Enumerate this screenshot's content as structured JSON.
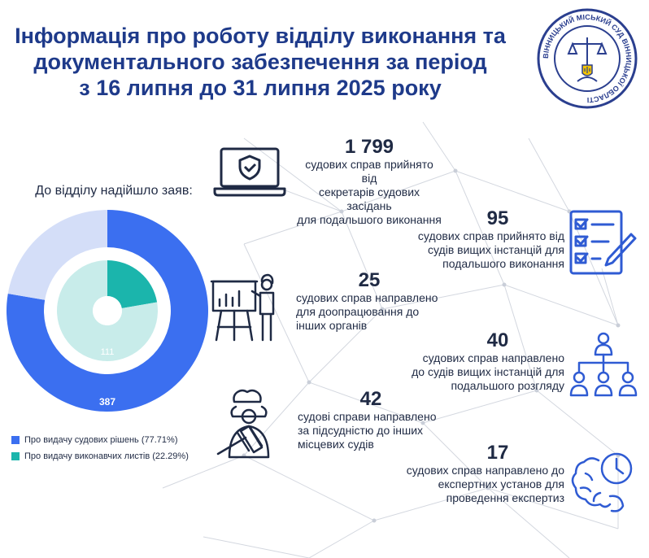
{
  "title_lines": [
    "Інформація про роботу відділу виконання та",
    "документального забезпечення за період",
    "з 16 липня до 31 липня 2025 року"
  ],
  "emblem": {
    "ring_text": "ВІННИЦЬКИЙ МІСЬКИЙ СУД ВІННИЦЬКОЇ ОБЛАСТІ",
    "colors": {
      "primary": "#2b3f8f",
      "accent": "#f2c300"
    }
  },
  "donut": {
    "title": "До відділу надійшло заяв:",
    "outer_label": "387",
    "inner_label": "111"
  },
  "chart_data": {
    "type": "pie",
    "title": "До відділу надійшло заяв:",
    "rings": [
      {
        "slices": [
          {
            "name": "Про видачу судових рішень",
            "value": 387,
            "percent": 77.71,
            "color": "#3b6ff0"
          },
          {
            "name": "rest",
            "value": 111,
            "percent": 22.29,
            "color": "#d4def8"
          }
        ]
      },
      {
        "slices": [
          {
            "name": "Про видачу виконавчих листів",
            "value": 111,
            "percent": 22.29,
            "color": "#1bb5ac"
          },
          {
            "name": "rest",
            "value": 387,
            "percent": 77.71,
            "color": "#c8ecea"
          }
        ]
      }
    ],
    "legend": [
      {
        "label": "Про видачу судових рішень (77.71%)",
        "color": "#3b6ff0"
      },
      {
        "label": "Про видачу виконавчих листів (22.29%)",
        "color": "#1bb5ac"
      }
    ],
    "legend_position": "bottom-left"
  },
  "stats": [
    {
      "number": "1 799",
      "lines": [
        "судових справ прийнято від",
        "секретарів судових засідань",
        "для подальшого виконання"
      ],
      "icon": "laptop-shield-icon"
    },
    {
      "number": "95",
      "lines": [
        "судових справ  прийнято від",
        "судів вищих інстанцій для",
        "подальшого виконання"
      ],
      "icon": "checklist-icon"
    },
    {
      "number": "25",
      "lines": [
        "судових справ  направлено",
        "для доопрацювання до",
        "інших органів"
      ],
      "icon": "presentation-icon"
    },
    {
      "number": "40",
      "lines": [
        "судових справ направлено",
        "до судів вищих інстанцій для",
        "подальшого розгляду"
      ],
      "icon": "hierarchy-icon"
    },
    {
      "number": "42",
      "lines": [
        "судові справи  направлено",
        "за підсудністю до інших",
        "місцевих судів"
      ],
      "icon": "judge-gavel-icon"
    },
    {
      "number": "17",
      "lines": [
        "судових справ направлено до",
        "експертних установ для",
        "проведення експертиз"
      ],
      "icon": "brain-clock-icon"
    }
  ],
  "colors": {
    "accent": "#2f5bd3",
    "title": "#1e3a8a",
    "network": "#c9ced8"
  }
}
